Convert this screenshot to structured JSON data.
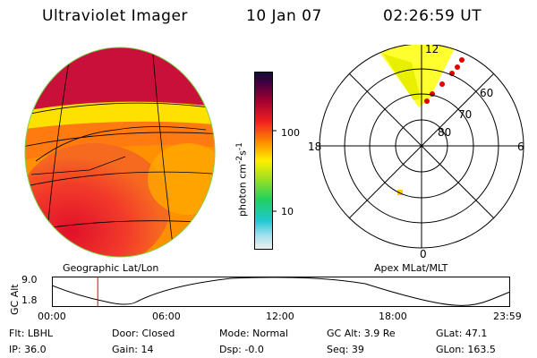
{
  "header": {
    "title": "Ultraviolet Imager",
    "date": "10 Jan 07",
    "time": "02:26:59 UT"
  },
  "colorbar": {
    "unit_label": "photon cm",
    "unit_sup1": "-2",
    "unit_mid": "s",
    "unit_sup2": "-1",
    "ticks": [
      "100",
      "10"
    ]
  },
  "polar_plot": {
    "mlt_labels": {
      "top": "12",
      "left": "18",
      "right": "6",
      "bottom": "0"
    },
    "lat_labels": [
      "60",
      "70",
      "80"
    ]
  },
  "map_labels": {
    "left": "Geographic Lat/Lon",
    "right": "Apex MLat/MLT"
  },
  "altitude_plot": {
    "ylabel": "GC Alt",
    "yticks": [
      "9.0",
      "1.8"
    ],
    "xticks": [
      "00:00",
      "06:00",
      "12:00",
      "18:00",
      "23:59"
    ],
    "current_time_fraction": 0.1
  },
  "info": {
    "row1": [
      "Flt: LBHL",
      "Door: Closed",
      "Mode: Normal",
      "GC Alt: 3.9 Re",
      "GLat: 47.1"
    ],
    "row2": [
      "IP: 36.0",
      "Gain: 14",
      "Dsp: -0.0",
      "Seq: 39",
      "GLon: 163.5"
    ]
  },
  "colors": {
    "background": "#ffffff",
    "time_marker": "#e00000"
  }
}
